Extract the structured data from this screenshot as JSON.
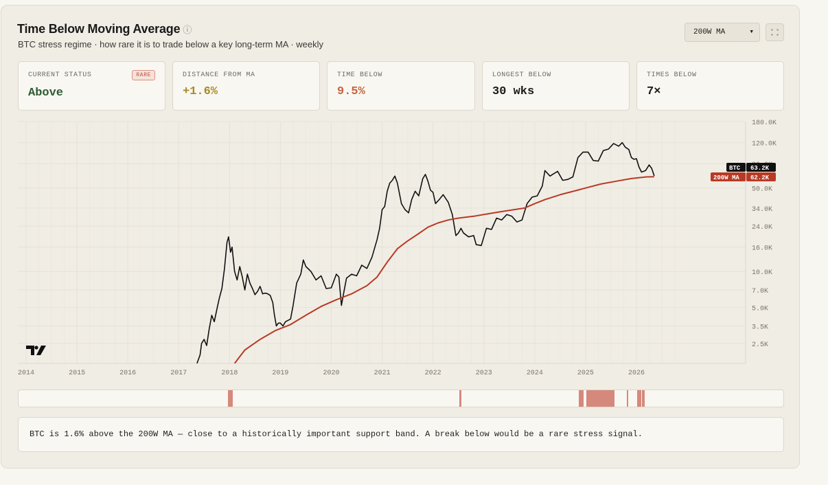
{
  "header": {
    "title": "Time Below Moving Average",
    "info_icon": "ⓘ",
    "subtitle": "BTC stress regime · how rare it is to trade below a key long-term MA · weekly",
    "ma_select_value": "200W MA"
  },
  "stats": [
    {
      "label": "CURRENT STATUS",
      "value": "Above",
      "badge": "RARE",
      "color": "#2e5d34"
    },
    {
      "label": "DISTANCE FROM MA",
      "value": "+1.6%",
      "color": "#a88a2a"
    },
    {
      "label": "TIME BELOW",
      "value": "9.5%",
      "color": "#c4663f"
    },
    {
      "label": "LONGEST BELOW",
      "value": "30 wks",
      "color": "#1a1a1a"
    },
    {
      "label": "TIMES BELOW",
      "value": "7×",
      "color": "#1a1a1a"
    }
  ],
  "chart_data": {
    "type": "line",
    "y_scale": "log",
    "ylim": [
      1700,
      180000
    ],
    "xlim": [
      2014.0,
      2026.8
    ],
    "x_ticks": [
      "2014",
      "2015",
      "2016",
      "2017",
      "2018",
      "2019",
      "2020",
      "2021",
      "2022",
      "2023",
      "2024",
      "2025",
      "2026"
    ],
    "y_ticks": [
      {
        "v": 2500,
        "label": "2.5K"
      },
      {
        "v": 3500,
        "label": "3.5K"
      },
      {
        "v": 5000,
        "label": "5.0K"
      },
      {
        "v": 7000,
        "label": "7.0K"
      },
      {
        "v": 10000,
        "label": "10.0K"
      },
      {
        "v": 16000,
        "label": "16.0K"
      },
      {
        "v": 24000,
        "label": "24.0K"
      },
      {
        "v": 34000,
        "label": "34.0K"
      },
      {
        "v": 50000,
        "label": "50.0K"
      },
      {
        "v": 80000,
        "label": "80.0K"
      },
      {
        "v": 120000,
        "label": "120.0K"
      },
      {
        "v": 180000,
        "label": "180.0K"
      }
    ],
    "grid": true,
    "series": [
      {
        "name": "BTC",
        "color": "#111111",
        "last_label": "63.2K",
        "points": [
          [
            2017.36,
            1700
          ],
          [
            2017.42,
            2000
          ],
          [
            2017.45,
            2500
          ],
          [
            2017.5,
            2700
          ],
          [
            2017.55,
            2400
          ],
          [
            2017.6,
            3300
          ],
          [
            2017.65,
            4300
          ],
          [
            2017.7,
            3800
          ],
          [
            2017.75,
            4800
          ],
          [
            2017.8,
            6000
          ],
          [
            2017.85,
            7200
          ],
          [
            2017.9,
            10500
          ],
          [
            2017.95,
            17500
          ],
          [
            2017.98,
            19500
          ],
          [
            2018.02,
            14500
          ],
          [
            2018.05,
            16000
          ],
          [
            2018.1,
            10000
          ],
          [
            2018.15,
            8500
          ],
          [
            2018.2,
            11000
          ],
          [
            2018.25,
            9000
          ],
          [
            2018.3,
            7000
          ],
          [
            2018.35,
            9500
          ],
          [
            2018.4,
            8000
          ],
          [
            2018.45,
            7200
          ],
          [
            2018.5,
            6400
          ],
          [
            2018.55,
            6800
          ],
          [
            2018.6,
            7500
          ],
          [
            2018.65,
            6500
          ],
          [
            2018.7,
            6600
          ],
          [
            2018.75,
            6500
          ],
          [
            2018.8,
            6300
          ],
          [
            2018.85,
            5500
          ],
          [
            2018.88,
            4400
          ],
          [
            2018.92,
            3500
          ],
          [
            2018.96,
            3700
          ],
          [
            2019.0,
            3700
          ],
          [
            2019.05,
            3500
          ],
          [
            2019.1,
            3800
          ],
          [
            2019.2,
            4000
          ],
          [
            2019.25,
            5200
          ],
          [
            2019.32,
            8000
          ],
          [
            2019.4,
            9500
          ],
          [
            2019.45,
            12500
          ],
          [
            2019.5,
            11000
          ],
          [
            2019.55,
            10500
          ],
          [
            2019.6,
            10000
          ],
          [
            2019.7,
            8500
          ],
          [
            2019.8,
            9200
          ],
          [
            2019.9,
            7200
          ],
          [
            2020.0,
            7300
          ],
          [
            2020.1,
            9500
          ],
          [
            2020.15,
            9000
          ],
          [
            2020.2,
            5200
          ],
          [
            2020.25,
            6800
          ],
          [
            2020.3,
            8800
          ],
          [
            2020.4,
            9500
          ],
          [
            2020.5,
            9200
          ],
          [
            2020.6,
            11300
          ],
          [
            2020.7,
            10600
          ],
          [
            2020.8,
            13200
          ],
          [
            2020.9,
            18500
          ],
          [
            2020.95,
            23000
          ],
          [
            2021.0,
            33000
          ],
          [
            2021.05,
            35000
          ],
          [
            2021.1,
            47000
          ],
          [
            2021.15,
            55000
          ],
          [
            2021.2,
            58000
          ],
          [
            2021.25,
            63000
          ],
          [
            2021.3,
            55000
          ],
          [
            2021.38,
            37000
          ],
          [
            2021.45,
            33000
          ],
          [
            2021.52,
            31000
          ],
          [
            2021.58,
            40000
          ],
          [
            2021.65,
            47000
          ],
          [
            2021.72,
            43000
          ],
          [
            2021.8,
            60000
          ],
          [
            2021.85,
            65000
          ],
          [
            2021.9,
            57000
          ],
          [
            2021.95,
            48000
          ],
          [
            2022.0,
            46000
          ],
          [
            2022.05,
            37000
          ],
          [
            2022.12,
            40000
          ],
          [
            2022.2,
            44000
          ],
          [
            2022.3,
            38000
          ],
          [
            2022.38,
            30000
          ],
          [
            2022.45,
            20000
          ],
          [
            2022.5,
            21000
          ],
          [
            2022.55,
            23000
          ],
          [
            2022.6,
            21000
          ],
          [
            2022.7,
            19500
          ],
          [
            2022.8,
            20000
          ],
          [
            2022.85,
            16800
          ],
          [
            2022.95,
            16500
          ],
          [
            2023.05,
            23000
          ],
          [
            2023.15,
            22500
          ],
          [
            2023.25,
            28000
          ],
          [
            2023.35,
            27000
          ],
          [
            2023.45,
            30000
          ],
          [
            2023.55,
            29000
          ],
          [
            2023.65,
            26000
          ],
          [
            2023.75,
            27000
          ],
          [
            2023.85,
            37000
          ],
          [
            2023.95,
            42000
          ],
          [
            2024.05,
            43000
          ],
          [
            2024.15,
            52000
          ],
          [
            2024.2,
            70000
          ],
          [
            2024.3,
            63000
          ],
          [
            2024.35,
            65000
          ],
          [
            2024.45,
            69000
          ],
          [
            2024.55,
            58000
          ],
          [
            2024.65,
            59000
          ],
          [
            2024.75,
            62000
          ],
          [
            2024.85,
            90000
          ],
          [
            2024.95,
            100000
          ],
          [
            2025.05,
            100000
          ],
          [
            2025.15,
            85000
          ],
          [
            2025.25,
            84000
          ],
          [
            2025.35,
            103000
          ],
          [
            2025.45,
            106000
          ],
          [
            2025.55,
            118000
          ],
          [
            2025.65,
            112000
          ],
          [
            2025.72,
            120000
          ],
          [
            2025.78,
            110000
          ],
          [
            2025.85,
            105000
          ],
          [
            2025.9,
            90000
          ],
          [
            2025.95,
            87000
          ],
          [
            2026.0,
            88000
          ],
          [
            2026.05,
            75000
          ],
          [
            2026.1,
            68000
          ],
          [
            2026.18,
            70000
          ],
          [
            2026.25,
            78000
          ],
          [
            2026.3,
            73000
          ],
          [
            2026.35,
            63200
          ]
        ]
      },
      {
        "name": "200W MA",
        "color": "#b83a24",
        "last_label": "62.2K",
        "points": [
          [
            2018.1,
            1700
          ],
          [
            2018.3,
            2200
          ],
          [
            2018.6,
            2700
          ],
          [
            2018.9,
            3200
          ],
          [
            2019.2,
            3600
          ],
          [
            2019.5,
            4300
          ],
          [
            2019.8,
            5100
          ],
          [
            2020.1,
            5800
          ],
          [
            2020.4,
            6500
          ],
          [
            2020.7,
            7600
          ],
          [
            2020.9,
            9000
          ],
          [
            2021.1,
            12000
          ],
          [
            2021.3,
            15500
          ],
          [
            2021.5,
            18000
          ],
          [
            2021.7,
            20500
          ],
          [
            2021.9,
            23500
          ],
          [
            2022.1,
            25500
          ],
          [
            2022.3,
            27000
          ],
          [
            2022.5,
            28000
          ],
          [
            2022.8,
            29000
          ],
          [
            2023.1,
            30500
          ],
          [
            2023.4,
            32000
          ],
          [
            2023.8,
            34000
          ],
          [
            2024.0,
            37000
          ],
          [
            2024.2,
            40000
          ],
          [
            2024.5,
            44000
          ],
          [
            2024.8,
            47500
          ],
          [
            2025.0,
            50000
          ],
          [
            2025.3,
            54000
          ],
          [
            2025.6,
            57000
          ],
          [
            2025.9,
            60000
          ],
          [
            2026.2,
            62000
          ],
          [
            2026.35,
            62200
          ]
        ]
      }
    ]
  },
  "regime_bar": {
    "color": "#d5897c",
    "segments": [
      [
        2017.95,
        2018.05
      ],
      [
        2022.5,
        2022.55
      ],
      [
        2024.85,
        2024.95
      ],
      [
        2025.0,
        2025.55
      ],
      [
        2025.8,
        2025.83
      ],
      [
        2026.0,
        2026.08
      ],
      [
        2026.1,
        2026.15
      ]
    ]
  },
  "note": "BTC is 1.6% above the 200W MA — close to a historically important support band. A break below would be a rare stress signal."
}
